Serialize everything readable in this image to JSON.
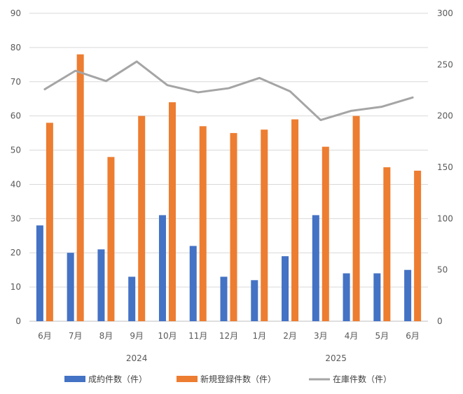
{
  "chart_data": {
    "type": "bar",
    "categories": [
      "6月",
      "7月",
      "8月",
      "9月",
      "10月",
      "11月",
      "12月",
      "1月",
      "2月",
      "3月",
      "4月",
      "5月",
      "6月"
    ],
    "year_labels": [
      {
        "label": "2024",
        "span": [
          0,
          6
        ]
      },
      {
        "label": "2025",
        "span": [
          7,
          12
        ]
      }
    ],
    "series": [
      {
        "name": "成約件数（件）",
        "kind": "bar",
        "axis": "left",
        "color": "#4472C4",
        "values": [
          28,
          20,
          21,
          13,
          31,
          22,
          13,
          12,
          19,
          31,
          14,
          14,
          15
        ]
      },
      {
        "name": "新規登録件数（件）",
        "kind": "bar",
        "axis": "left",
        "color": "#ED7D31",
        "values": [
          58,
          78,
          48,
          60,
          64,
          57,
          55,
          56,
          59,
          51,
          60,
          45,
          44
        ]
      },
      {
        "name": "在庫件数（件）",
        "kind": "line",
        "axis": "right",
        "color": "#A5A5A5",
        "values": [
          226,
          244,
          234,
          253,
          230,
          223,
          227,
          237,
          224,
          196,
          205,
          209,
          218
        ]
      }
    ],
    "y_left": {
      "min": 0,
      "max": 90,
      "ticks": [
        "0",
        "10",
        "20",
        "30",
        "40",
        "50",
        "60",
        "70",
        "80",
        "90"
      ]
    },
    "y_right": {
      "min": 0,
      "max": 300,
      "ticks": [
        "0",
        "50",
        "100",
        "150",
        "200",
        "250",
        "300"
      ]
    },
    "grid": true,
    "legend_position": "bottom"
  }
}
